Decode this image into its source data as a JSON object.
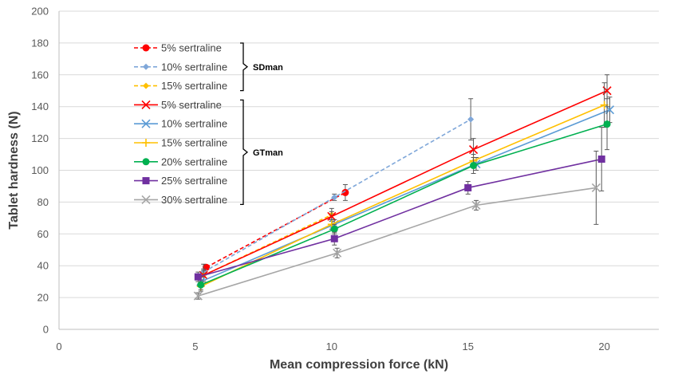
{
  "chart_data": {
    "type": "line",
    "title": "",
    "xlabel": "Mean compression force (kN)",
    "ylabel": "Tablet hardness (N)",
    "xlim": [
      0,
      22
    ],
    "ylim": [
      0,
      200
    ],
    "xticks": [
      "0",
      "5",
      "10",
      "15",
      "20"
    ],
    "yticks": [
      "0",
      "20",
      "40",
      "60",
      "80",
      "100",
      "120",
      "140",
      "160",
      "180",
      "200"
    ],
    "grid": "horizontal",
    "groups": [
      {
        "label": "SDman",
        "series_indices": [
          0,
          1,
          2
        ]
      },
      {
        "label": "GTman",
        "series_indices": [
          3,
          4,
          5,
          6,
          7,
          8
        ]
      }
    ],
    "series": [
      {
        "name": "5% sertraline",
        "group": "SDman",
        "color": "#ff0000",
        "dash": true,
        "marker": "circle",
        "x": [
          5.4,
          10.5
        ],
        "y": [
          39,
          86
        ],
        "err": [
          0,
          5
        ]
      },
      {
        "name": "10% sertraline",
        "group": "SDman",
        "color": "#7fa7d9",
        "dash": true,
        "marker": "diamond",
        "x": [
          5.3,
          10.1,
          15.1
        ],
        "y": [
          36,
          83,
          132
        ],
        "err": [
          5,
          2,
          13
        ]
      },
      {
        "name": "15% sertraline",
        "group": "SDman",
        "color": "#ffc000",
        "dash": true,
        "marker": "diamond",
        "x": [
          5.3,
          10.0
        ],
        "y": [
          34,
          72
        ],
        "err": [
          4,
          4
        ]
      },
      {
        "name": "5% sertraline",
        "group": "GTman",
        "color": "#ff0000",
        "dash": false,
        "marker": "x",
        "x": [
          5.3,
          10.0,
          15.2,
          20.1
        ],
        "y": [
          34,
          71,
          113,
          150
        ],
        "err": [
          3,
          3,
          7,
          10
        ]
      },
      {
        "name": "10% sertraline",
        "group": "GTman",
        "color": "#5b9bd5",
        "dash": false,
        "marker": "x",
        "x": [
          5.2,
          10.1,
          15.3,
          20.2
        ],
        "y": [
          30,
          66,
          104,
          138
        ],
        "err": [
          3,
          3,
          4,
          8
        ]
      },
      {
        "name": "15% sertraline",
        "group": "GTman",
        "color": "#ffc000",
        "dash": false,
        "marker": "plus",
        "x": [
          5.2,
          10.0,
          15.2,
          20.0
        ],
        "y": [
          27,
          66,
          106,
          141
        ],
        "err": [
          3,
          3,
          4,
          14
        ]
      },
      {
        "name": "20% sertraline",
        "group": "GTman",
        "color": "#00b050",
        "dash": false,
        "marker": "circle",
        "x": [
          5.2,
          10.1,
          15.2,
          20.1
        ],
        "y": [
          28,
          63,
          103,
          129
        ],
        "err": [
          3,
          3,
          5,
          16
        ]
      },
      {
        "name": "25% sertraline",
        "group": "GTman",
        "color": "#7030a0",
        "dash": false,
        "marker": "square",
        "x": [
          5.1,
          10.1,
          15.0,
          19.9
        ],
        "y": [
          33,
          57,
          89,
          107
        ],
        "err": [
          3,
          4,
          4,
          20
        ]
      },
      {
        "name": "30% sertraline",
        "group": "GTman",
        "color": "#a6a6a6",
        "dash": false,
        "marker": "x",
        "x": [
          5.1,
          10.2,
          15.3,
          19.7
        ],
        "y": [
          21,
          48,
          78,
          89
        ],
        "err": [
          2,
          3,
          3,
          23
        ]
      }
    ]
  }
}
